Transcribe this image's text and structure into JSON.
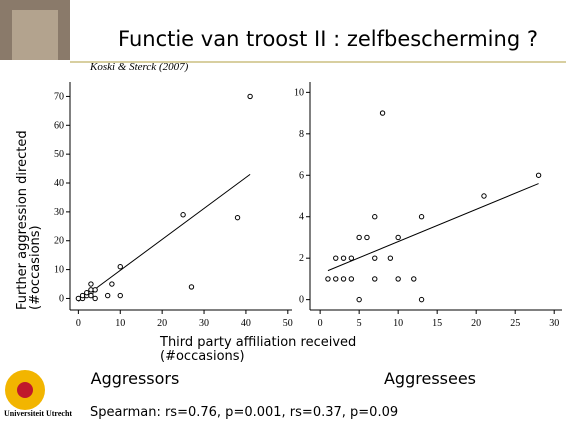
{
  "slide": {
    "title": "Functie van troost II : zelfbescherming ?",
    "citation": "Koski & Sterck (2007)",
    "label_left": "Aggressors",
    "label_right": "Aggressees",
    "stats": "Spearman: rs=0.76, p=0.001, rs=0.37, p=0.09",
    "logo_text": "Universiteit Utrecht"
  },
  "chart_data": [
    {
      "type": "scatter",
      "xlabel": "Third party affiliation received (#occasions)",
      "ylabel": "Further aggression directed (#occasions)",
      "xlim": [
        -2,
        51
      ],
      "ylim": [
        -4,
        75
      ],
      "xticks": [
        0,
        10,
        20,
        30,
        40,
        50
      ],
      "yticks": [
        0,
        10,
        20,
        30,
        40,
        50,
        60,
        70
      ],
      "series": [
        {
          "x": [
            0,
            1,
            1,
            2,
            2,
            3,
            3,
            3,
            3,
            4,
            4,
            7,
            8,
            10,
            10,
            25,
            27,
            38,
            41
          ],
          "y": [
            0,
            0,
            1,
            1,
            2,
            2,
            5,
            1,
            3,
            3,
            0,
            1,
            5,
            1,
            11,
            29,
            4,
            28,
            70
          ]
        }
      ],
      "trendline": {
        "x": [
          0,
          41
        ],
        "y": [
          -1,
          43
        ]
      }
    },
    {
      "type": "scatter",
      "xlim": [
        -1.3,
        31
      ],
      "ylim": [
        -0.5,
        10.5
      ],
      "xticks": [
        0,
        5,
        10,
        15,
        20,
        25,
        30
      ],
      "yticks": [
        0,
        2,
        4,
        6,
        8,
        10
      ],
      "series": [
        {
          "x": [
            1,
            2,
            2,
            3,
            3,
            4,
            4,
            5,
            5,
            6,
            7,
            7,
            7,
            8,
            9,
            10,
            10,
            12,
            13,
            13,
            21,
            28
          ],
          "y": [
            1,
            1,
            2,
            1,
            2,
            1,
            2,
            0,
            3,
            3,
            1,
            2,
            4,
            9,
            2,
            1,
            3,
            1,
            0,
            4,
            5,
            6
          ]
        }
      ],
      "trendline": {
        "x": [
          1,
          28
        ],
        "y": [
          1.4,
          5.6
        ]
      }
    }
  ]
}
